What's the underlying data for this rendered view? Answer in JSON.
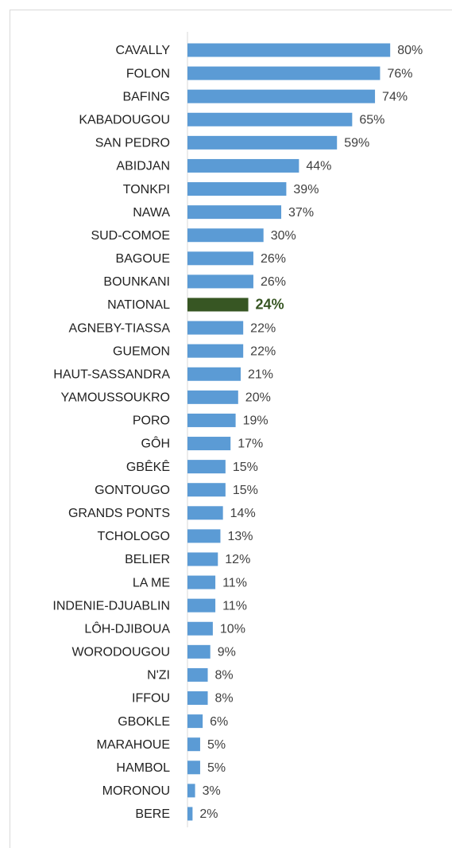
{
  "chart_data": {
    "type": "bar",
    "orientation": "horizontal",
    "categories": [
      "CAVALLY",
      "FOLON",
      "BAFING",
      "KABADOUGOU",
      "SAN PEDRO",
      "ABIDJAN",
      "TONKPI",
      "NAWA",
      "SUD-COMOE",
      "BAGOUE",
      "BOUNKANI",
      "NATIONAL",
      "AGNEBY-TIASSA",
      "GUEMON",
      "HAUT-SASSANDRA",
      "YAMOUSSOUKRO",
      "PORO",
      "GÔH",
      "GBÊKÊ",
      "GONTOUGO",
      "GRANDS PONTS",
      "TCHOLOGO",
      "BELIER",
      "LA ME",
      "INDENIE-DJUABLIN",
      "LÔH-DJIBOUA",
      "WORODOUGOU",
      "N'ZI",
      "IFFOU",
      "GBOKLE",
      "MARAHOUE",
      "HAMBOL",
      "MORONOU",
      "BERE"
    ],
    "values": [
      80,
      76,
      74,
      65,
      59,
      44,
      39,
      37,
      30,
      26,
      26,
      24,
      22,
      22,
      21,
      20,
      19,
      17,
      15,
      15,
      14,
      13,
      12,
      11,
      11,
      10,
      9,
      8,
      8,
      6,
      5,
      5,
      3,
      2
    ],
    "value_labels": [
      "80%",
      "76%",
      "74%",
      "65%",
      "59%",
      "44%",
      "39%",
      "37%",
      "30%",
      "26%",
      "26%",
      "24%",
      "22%",
      "22%",
      "21%",
      "20%",
      "19%",
      "17%",
      "15%",
      "15%",
      "14%",
      "13%",
      "12%",
      "11%",
      "11%",
      "10%",
      "9%",
      "8%",
      "8%",
      "6%",
      "5%",
      "5%",
      "3%",
      "2%"
    ],
    "color": "#5b9bd5",
    "colors": [
      "#5b9bd5",
      "#5b9bd5",
      "#5b9bd5",
      "#5b9bd5",
      "#5b9bd5",
      "#5b9bd5",
      "#5b9bd5",
      "#5b9bd5",
      "#5b9bd5",
      "#5b9bd5",
      "#5b9bd5",
      "#375623",
      "#5b9bd5",
      "#5b9bd5",
      "#5b9bd5",
      "#5b9bd5",
      "#5b9bd5",
      "#5b9bd5",
      "#5b9bd5",
      "#5b9bd5",
      "#5b9bd5",
      "#5b9bd5",
      "#5b9bd5",
      "#5b9bd5",
      "#5b9bd5",
      "#5b9bd5",
      "#5b9bd5",
      "#5b9bd5",
      "#5b9bd5",
      "#5b9bd5",
      "#5b9bd5",
      "#5b9bd5",
      "#5b9bd5",
      "#5b9bd5"
    ]
  }
}
